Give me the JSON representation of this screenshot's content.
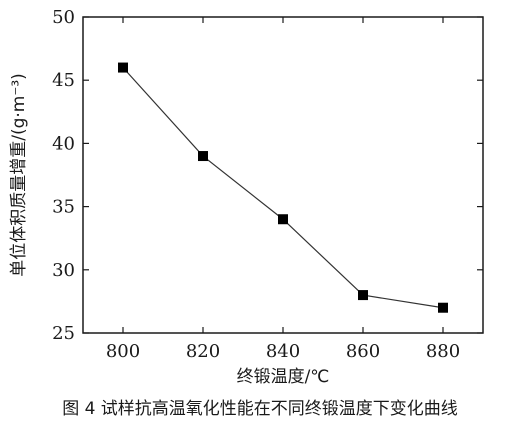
{
  "chart_data": {
    "type": "line",
    "x": [
      800,
      820,
      840,
      860,
      880
    ],
    "series": [
      {
        "values": [
          46,
          39,
          34,
          28,
          27
        ],
        "color": "#000000",
        "marker": "square"
      }
    ],
    "xlabel": "终锻温度/℃",
    "ylabel": "单位体积质量增重/(g·m⁻³)",
    "xlim": [
      790,
      890
    ],
    "ylim": [
      25,
      50
    ],
    "xticks": [
      800,
      820,
      840,
      860,
      880
    ],
    "yticks": [
      25,
      30,
      35,
      40,
      45,
      50
    ],
    "grid": false
  },
  "caption": "图 4   试样抗高温氧化性能在不同终锻温度下变化曲线"
}
